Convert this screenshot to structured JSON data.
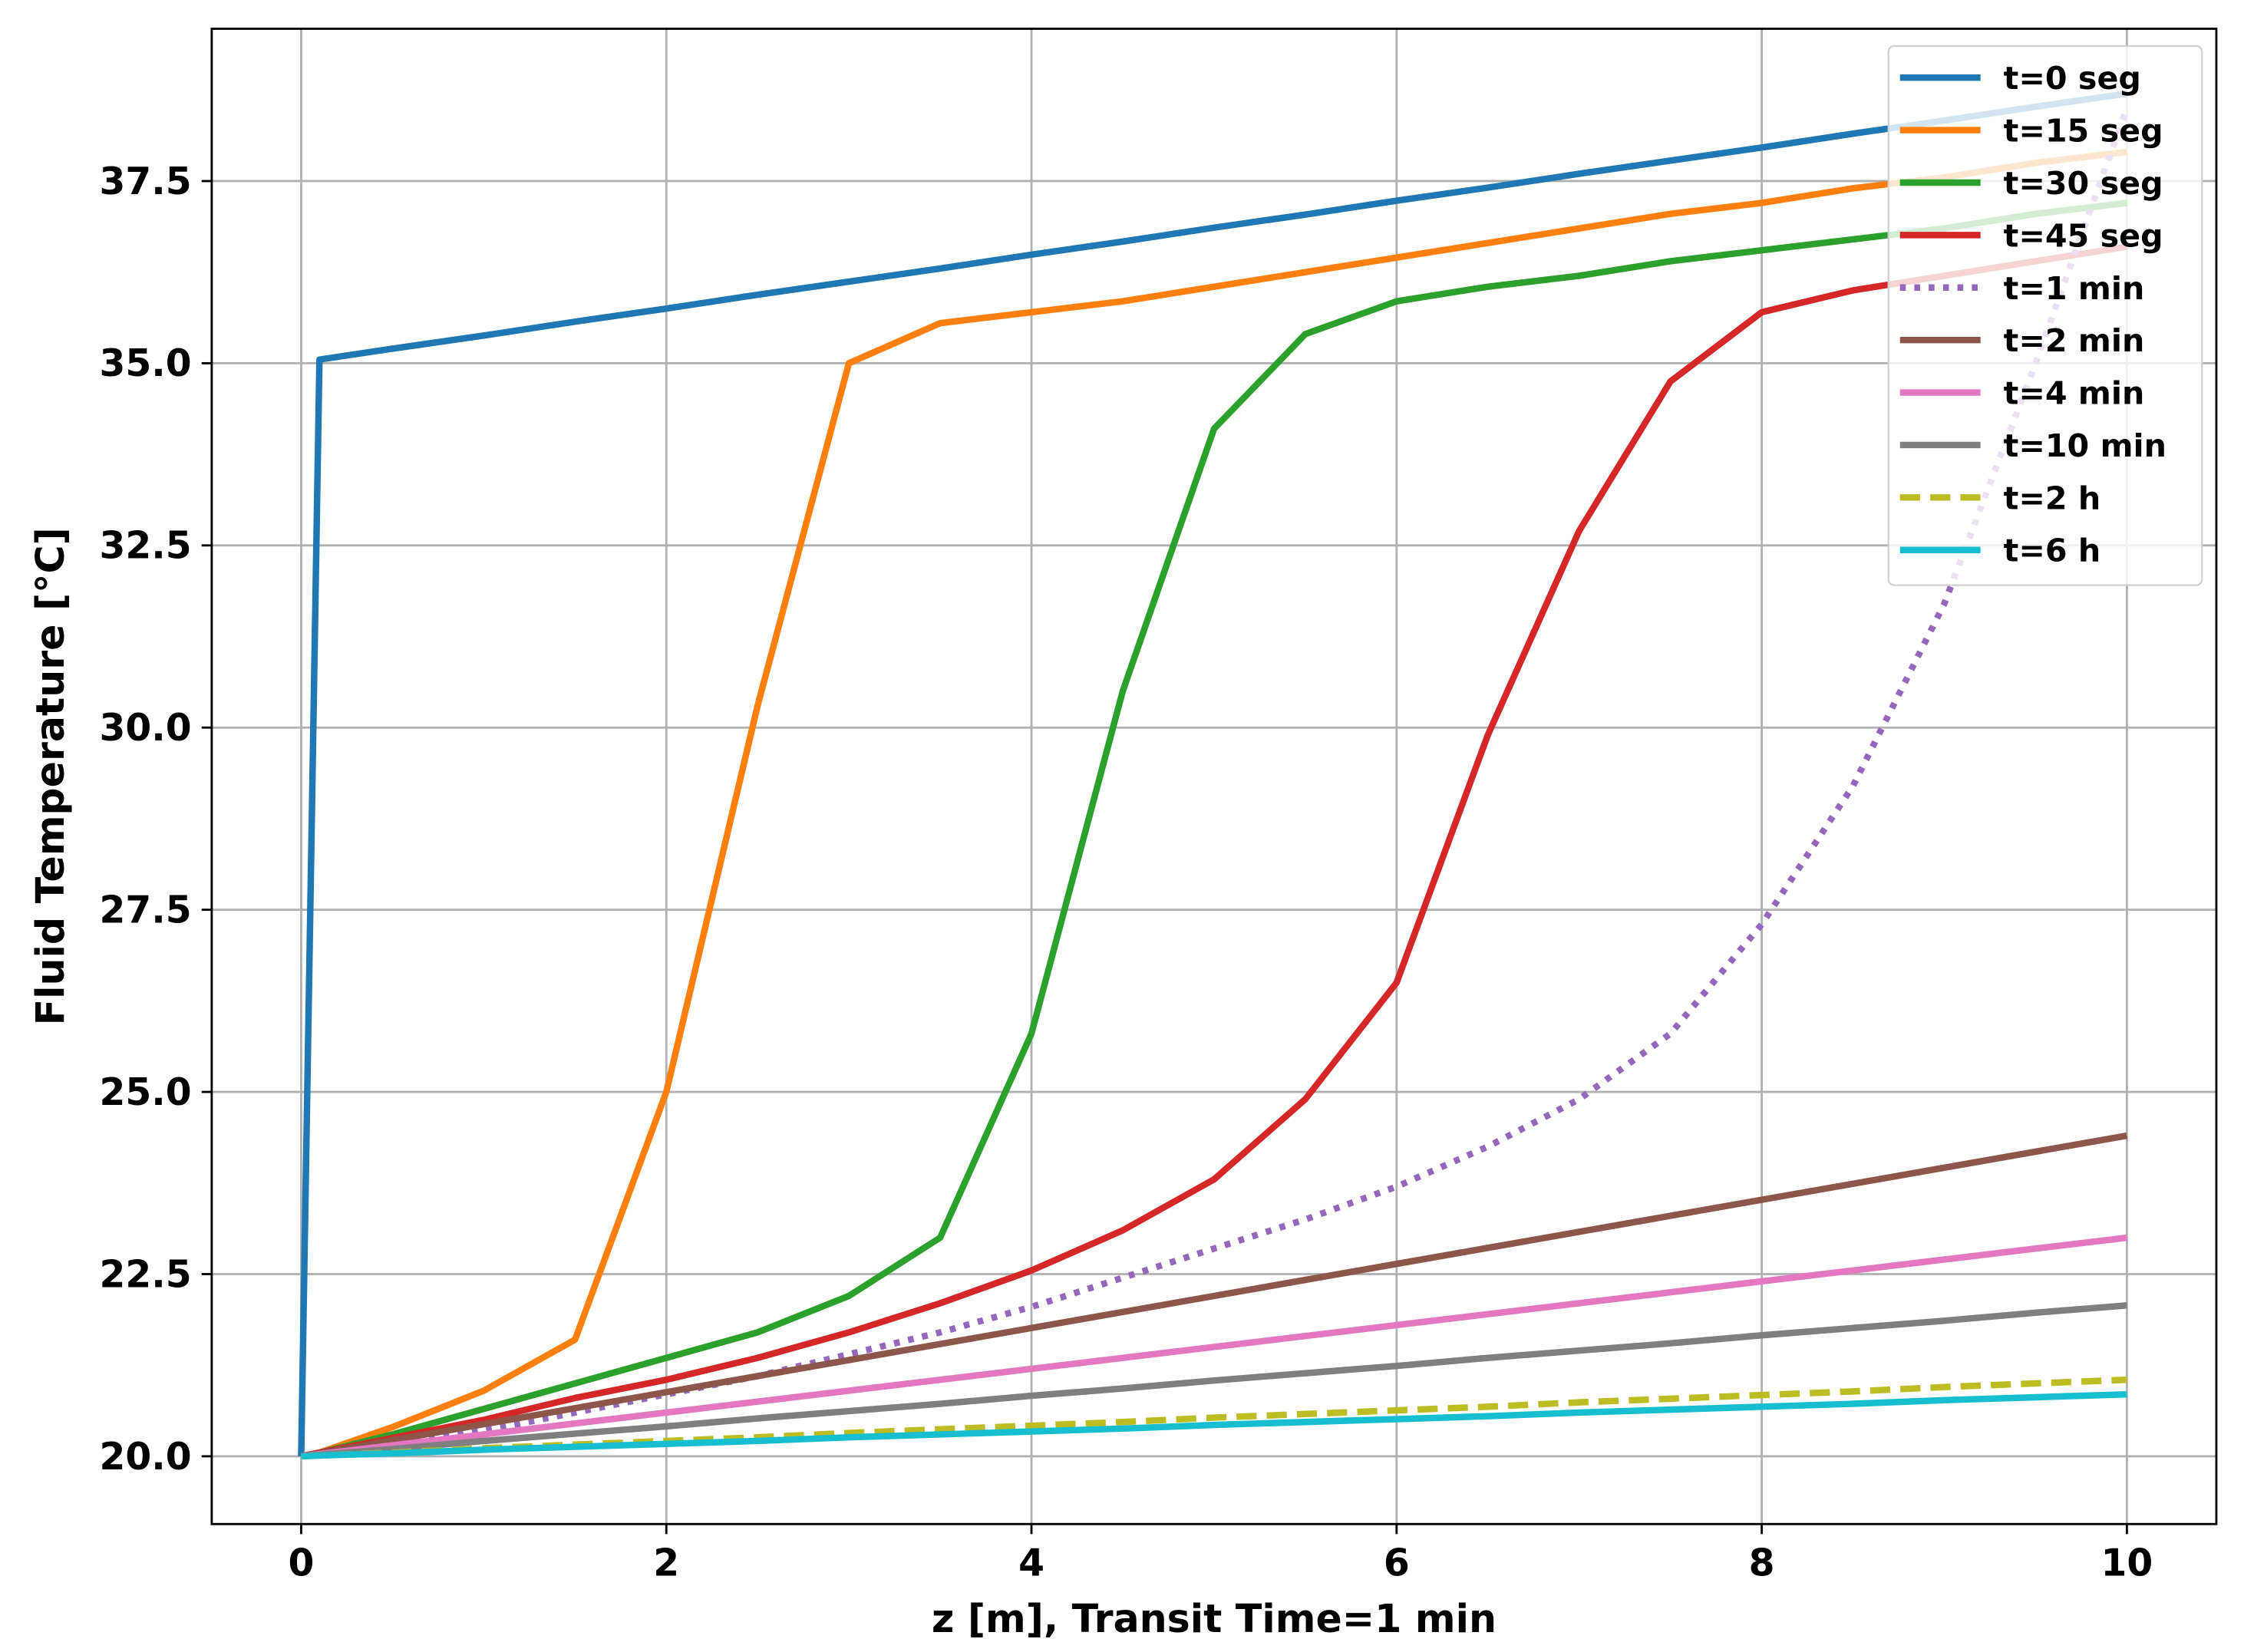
{
  "chart_data": {
    "type": "line",
    "xlabel": "z [m], Transit Time=1 min",
    "ylabel": "Fluid Temperature [°C]",
    "x": [
      0,
      0.1,
      0.5,
      1,
      1.5,
      2,
      2.5,
      3,
      3.5,
      4,
      4.5,
      5,
      5.5,
      6,
      6.5,
      7,
      7.5,
      8,
      8.5,
      9,
      9.5,
      10
    ],
    "series": [
      {
        "name": "t=0 seg",
        "color": "#1f77b4",
        "linestyle": "solid",
        "values": [
          20,
          35.05,
          35.2,
          35.38,
          35.57,
          35.75,
          35.94,
          36.12,
          36.3,
          36.49,
          36.67,
          36.86,
          37.04,
          37.23,
          37.41,
          37.6,
          37.78,
          37.96,
          38.15,
          38.33,
          38.52,
          38.7
        ]
      },
      {
        "name": "t=15 seg",
        "color": "#ff7f0e",
        "linestyle": "solid",
        "values": [
          20,
          20.05,
          20.4,
          20.9,
          21.6,
          25.0,
          30.3,
          35.0,
          35.55,
          35.7,
          35.85,
          36.05,
          36.25,
          36.45,
          36.65,
          36.85,
          37.05,
          37.2,
          37.4,
          37.55,
          37.75,
          37.9
        ]
      },
      {
        "name": "t=30 seg",
        "color": "#2ca02c",
        "linestyle": "solid",
        "values": [
          20,
          20.05,
          20.3,
          20.65,
          21.0,
          21.35,
          21.7,
          22.2,
          23.0,
          25.8,
          30.5,
          34.1,
          35.4,
          35.85,
          36.05,
          36.2,
          36.4,
          36.55,
          36.7,
          36.85,
          37.05,
          37.2
        ]
      },
      {
        "name": "t=45 seg",
        "color": "#d62728",
        "linestyle": "solid",
        "values": [
          20,
          20.05,
          20.25,
          20.5,
          20.8,
          21.05,
          21.35,
          21.7,
          22.1,
          22.55,
          23.1,
          23.8,
          24.9,
          26.5,
          29.9,
          32.7,
          34.75,
          35.7,
          36.0,
          36.2,
          36.4,
          36.6
        ]
      },
      {
        "name": "t=1 min",
        "color": "#9467bd",
        "linestyle": "dotted",
        "values": [
          20,
          20.03,
          20.15,
          20.35,
          20.6,
          20.85,
          21.1,
          21.4,
          21.7,
          22.05,
          22.45,
          22.85,
          23.25,
          23.7,
          24.25,
          24.9,
          25.8,
          27.3,
          29.2,
          31.7,
          35.0,
          38.5
        ]
      },
      {
        "name": "t=2 min",
        "color": "#8c564b",
        "linestyle": "solid",
        "values": [
          20,
          20.04,
          20.22,
          20.44,
          20.66,
          20.88,
          21.1,
          21.32,
          21.54,
          21.76,
          21.98,
          22.2,
          22.42,
          22.64,
          22.86,
          23.08,
          23.3,
          23.52,
          23.74,
          23.96,
          24.18,
          24.4
        ]
      },
      {
        "name": "t=4 min",
        "color": "#e377c2",
        "linestyle": "solid",
        "values": [
          20,
          20.03,
          20.15,
          20.3,
          20.45,
          20.6,
          20.75,
          20.9,
          21.05,
          21.2,
          21.35,
          21.5,
          21.65,
          21.8,
          21.95,
          22.1,
          22.25,
          22.4,
          22.55,
          22.7,
          22.85,
          23.0
        ]
      },
      {
        "name": "t=10 min",
        "color": "#7f7f7f",
        "linestyle": "solid",
        "values": [
          20,
          20.02,
          20.1,
          20.21,
          20.31,
          20.41,
          20.52,
          20.62,
          20.72,
          20.83,
          20.93,
          21.04,
          21.14,
          21.24,
          21.35,
          21.45,
          21.55,
          21.66,
          21.76,
          21.86,
          21.97,
          22.07
        ]
      },
      {
        "name": "t=2 h",
        "color": "#bcbd22",
        "linestyle": "dashed",
        "values": [
          20,
          20.01,
          20.05,
          20.11,
          20.16,
          20.21,
          20.26,
          20.32,
          20.37,
          20.42,
          20.47,
          20.53,
          20.58,
          20.63,
          20.68,
          20.74,
          20.79,
          20.84,
          20.89,
          20.95,
          21.0,
          21.05
        ]
      },
      {
        "name": "t=6 h",
        "color": "#17becf",
        "linestyle": "solid",
        "values": [
          20,
          20.01,
          20.04,
          20.09,
          20.13,
          20.17,
          20.21,
          20.26,
          20.3,
          20.34,
          20.38,
          20.43,
          20.47,
          20.51,
          20.55,
          20.6,
          20.64,
          20.68,
          20.72,
          20.77,
          20.81,
          20.85
        ]
      }
    ],
    "xlim": [
      -0.49,
      10.49
    ],
    "ylim": [
      19.07,
      39.59
    ],
    "xticks": [
      0,
      2,
      4,
      6,
      8,
      10
    ],
    "yticks": [
      {
        "value": 20,
        "label": "20.0"
      },
      22.5,
      {
        "value": 25,
        "label": "25.0"
      },
      27.5,
      {
        "value": 30,
        "label": "30.0"
      },
      32.5,
      {
        "value": 35,
        "label": "35.0"
      },
      37.5
    ],
    "grid": true,
    "legend": "upper right"
  }
}
